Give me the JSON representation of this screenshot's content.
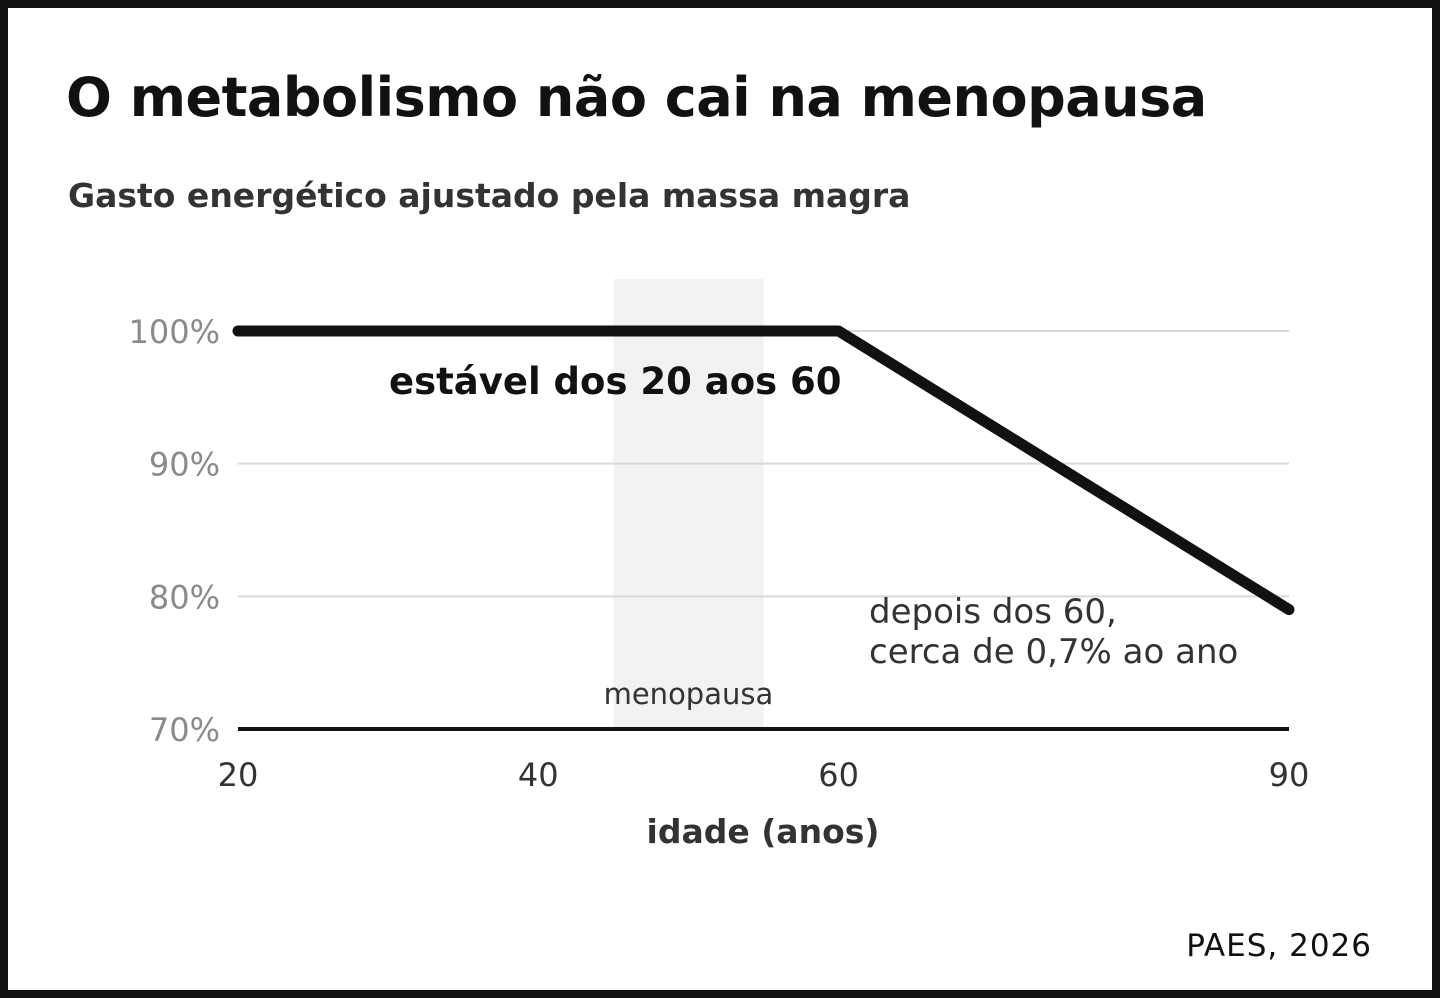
{
  "title": "O metabolismo não cai na menopausa",
  "subtitle": "Gasto energético ajustado pela massa magra",
  "source": "PAES, 2026",
  "colors": {
    "line": "#111111",
    "grid": "#d9d9d9",
    "band": "#f2f2f2",
    "baseline": "#111111"
  },
  "chart_data": {
    "type": "line",
    "title": "O metabolismo não cai na menopausa",
    "subtitle": "Gasto energético ajustado pela massa magra",
    "xlabel": "idade (anos)",
    "ylabel": "",
    "xlim": [
      20,
      90
    ],
    "ylim": [
      70,
      100
    ],
    "x_ticks": [
      20,
      40,
      60,
      90
    ],
    "x_tick_labels": [
      "20",
      "40",
      "60",
      "90"
    ],
    "y_ticks": [
      70,
      80,
      90,
      100
    ],
    "y_tick_labels": [
      "70%",
      "80%",
      "90%",
      "100%"
    ],
    "grid": true,
    "legend": "none",
    "series": [
      {
        "x": [
          20,
          60,
          90
        ],
        "y": [
          100,
          100,
          79
        ]
      }
    ],
    "shaded_region": {
      "x": [
        45,
        55
      ],
      "label": "menopausa"
    },
    "annotations": [
      {
        "text": "estável dos 20 aos 60",
        "x": 20,
        "y": 100
      },
      {
        "lines": [
          "depois dos 60,",
          "cerca de 0,7% ao ano"
        ],
        "x": 62,
        "y": 80
      }
    ]
  }
}
